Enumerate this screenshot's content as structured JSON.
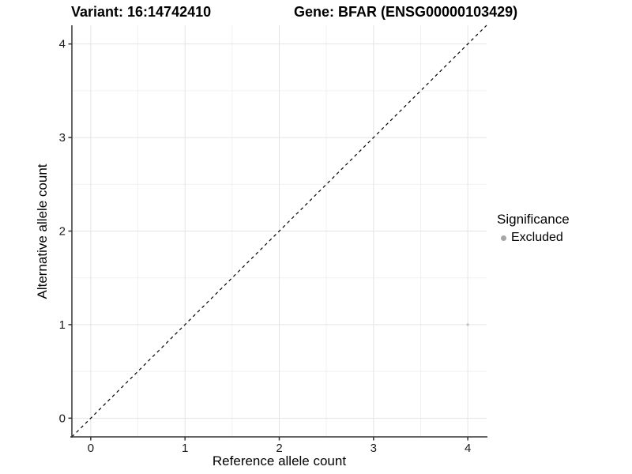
{
  "titles": {
    "variant": "Variant: 16:14742410",
    "gene": "Gene: BFAR (ENSG00000103429)"
  },
  "legend": {
    "title": "Significance",
    "items": [
      {
        "label": "Excluded",
        "color": "#a6a6a6",
        "marker": "circle"
      }
    ]
  },
  "chart_data": {
    "type": "scatter",
    "xlabel": "Reference allele count",
    "ylabel": "Alternative allele count",
    "xlim": [
      -0.2,
      4.2
    ],
    "ylim": [
      -0.2,
      4.2
    ],
    "x_ticks": [
      0,
      1,
      2,
      3,
      4
    ],
    "y_ticks": [
      0,
      1,
      2,
      3,
      4
    ],
    "x_minor": [
      0.5,
      1.5,
      2.5,
      3.5
    ],
    "y_minor": [
      0.5,
      1.5,
      2.5,
      3.5
    ],
    "grid": "major+minor",
    "legend_position": "right",
    "reference_line": {
      "slope": 1,
      "intercept": 0,
      "style": "dashed",
      "color": "#000000"
    },
    "series": [
      {
        "name": "Excluded",
        "color": "#c3c3c3",
        "point_size": 1.7,
        "points": [
          [
            4,
            1
          ]
        ]
      }
    ],
    "colors": {
      "grid_major": "#e4e4e4",
      "grid_minor": "#f1f1f1",
      "axis_line": "#333333",
      "tick_mark": "#333333",
      "tick_label": "#1a1a1a"
    }
  }
}
